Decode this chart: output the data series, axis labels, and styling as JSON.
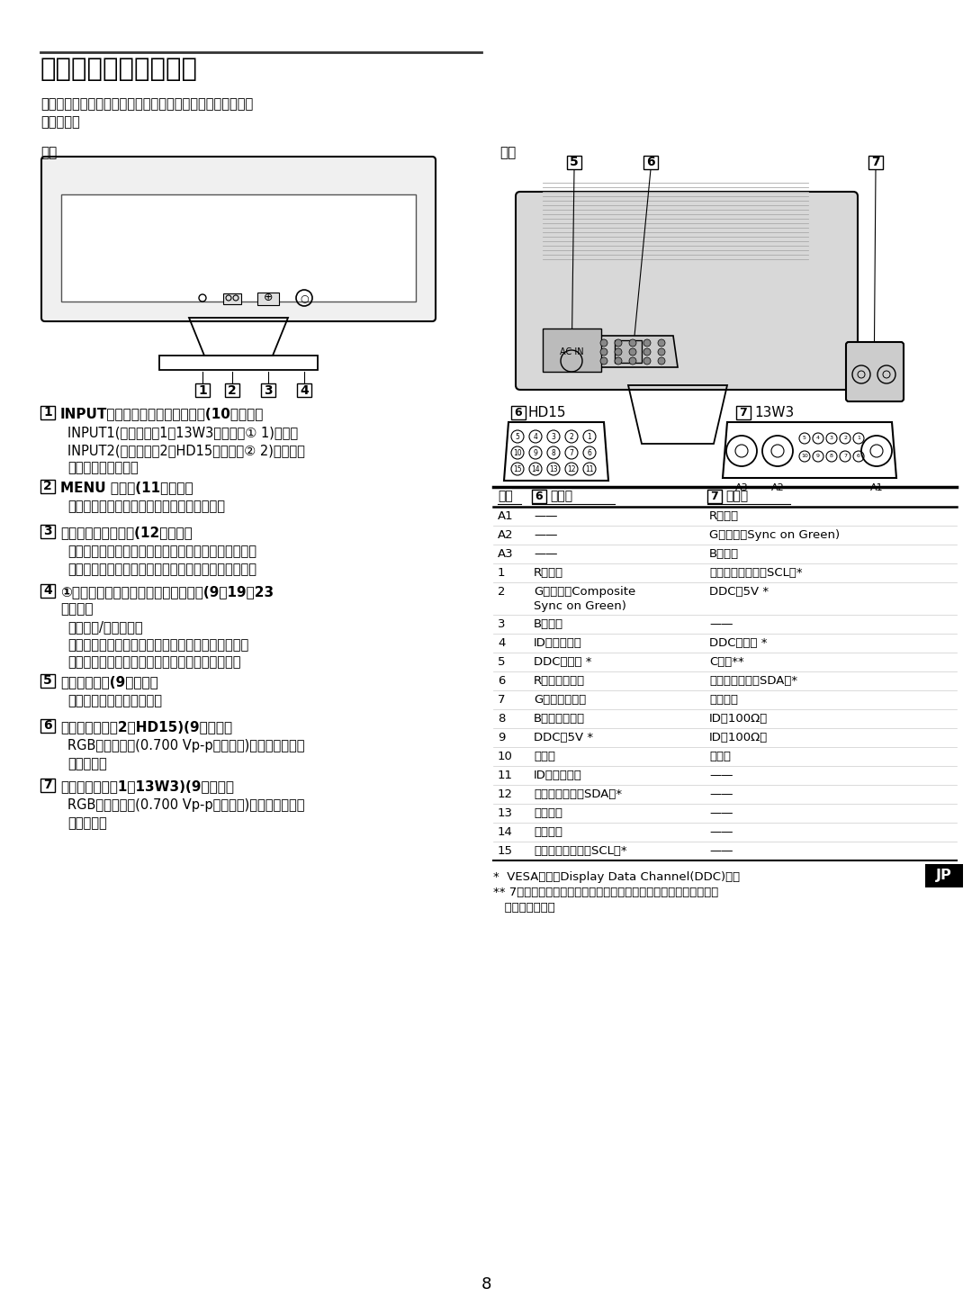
{
  "title": "各部の名前とはたらき",
  "subtitle": "使いかたについてのくわしい説明は（　）内のページをご覧\nください。",
  "front_label": "前面",
  "back_label": "後面",
  "section1_title": "INPUT（入力切り換え）スイッチ(10ページ）",
  "section1_body": "INPUT1(ビデオ入力1（13W3）端子：① 1)または\nINPUT2(ビデオ入力2（HD15）端子：② 2)からの入\n力を切り換えます。",
  "section2_title": "MENU ボタン(11ページ）",
  "section2_body": "メニュー画面を出したり、消したりします。",
  "section3_title": "コントロールボタン(12ページ）",
  "section3_body": "メニューでいろいろな調整をするときに使います。ま\nた、コントラストメニューもこのボタンで出します。",
  "section4_title": "①（電源）スイッチとインジケーター(9、19、23\nページ）",
  "section4_body": "電源を入/切します。\n電源が入るとインジケーターが緑色に点灯します。\n省電力状態のときは、オレンジ色に点灯します。",
  "section5_title": "電源入力端子(9ページ）",
  "section5_body": "電源コードをつなぎます。",
  "section6_title": "ビデオ入力端子2（HD15)(9ページ）",
  "section6_body": "RGBの映像信号(0.700 Vp-p、正極性)と同期信号を入\n力します。",
  "section7_title": "ビデオ入力端子1（13W3)(9ページ）",
  "section7_body": "RGBの映像信号(0.700 Vp-p、正極性)と同期信号を入\n力します。",
  "hd15_label": "HD15",
  "w3_label": "13W3",
  "table_header_num": "番号",
  "table_header_6": "信号名",
  "table_header_7": "信号名",
  "table_rows": [
    [
      "A1",
      "——",
      "R（赤）"
    ],
    [
      "A2",
      "——",
      "G（緑）（Sync on Green)"
    ],
    [
      "A3",
      "——",
      "B（青）"
    ],
    [
      "1",
      "R（赤）",
      "クロックライン（SCL）*"
    ],
    [
      "2",
      "G（緑）（Composite\nSync on Green)",
      "DDC＋5V *"
    ],
    [
      "3",
      "B（青）",
      "——"
    ],
    [
      "4",
      "ID（アース）",
      "DDCアース *"
    ],
    [
      "5",
      "DDCアース *",
      "C同期**"
    ],
    [
      "6",
      "R（赤）アース",
      "データライン（SDA）*"
    ],
    [
      "7",
      "G（緑）アース",
      "垂直同期"
    ],
    [
      "8",
      "B（青）アース",
      "ID（100Ω）"
    ],
    [
      "9",
      "DDC＋5V *",
      "ID（100Ω）"
    ],
    [
      "10",
      "アース",
      "アース"
    ],
    [
      "11",
      "ID（アース）",
      "——"
    ],
    [
      "12",
      "データライン（SDA）*",
      "——"
    ],
    [
      "13",
      "水平同期",
      "——"
    ],
    [
      "14",
      "垂直同期",
      "——"
    ],
    [
      "15",
      "クロックライン（SCL）*",
      "——"
    ]
  ],
  "footnote1": "*  VESAによるDisplay Data Channel(DDC)規格",
  "footnote2": "** 7番ピンが垂直同期用に使用されている場合、水平同期用として\n   使用されます。",
  "page_number": "8",
  "jp_label": "JP",
  "bg_color": "#ffffff"
}
